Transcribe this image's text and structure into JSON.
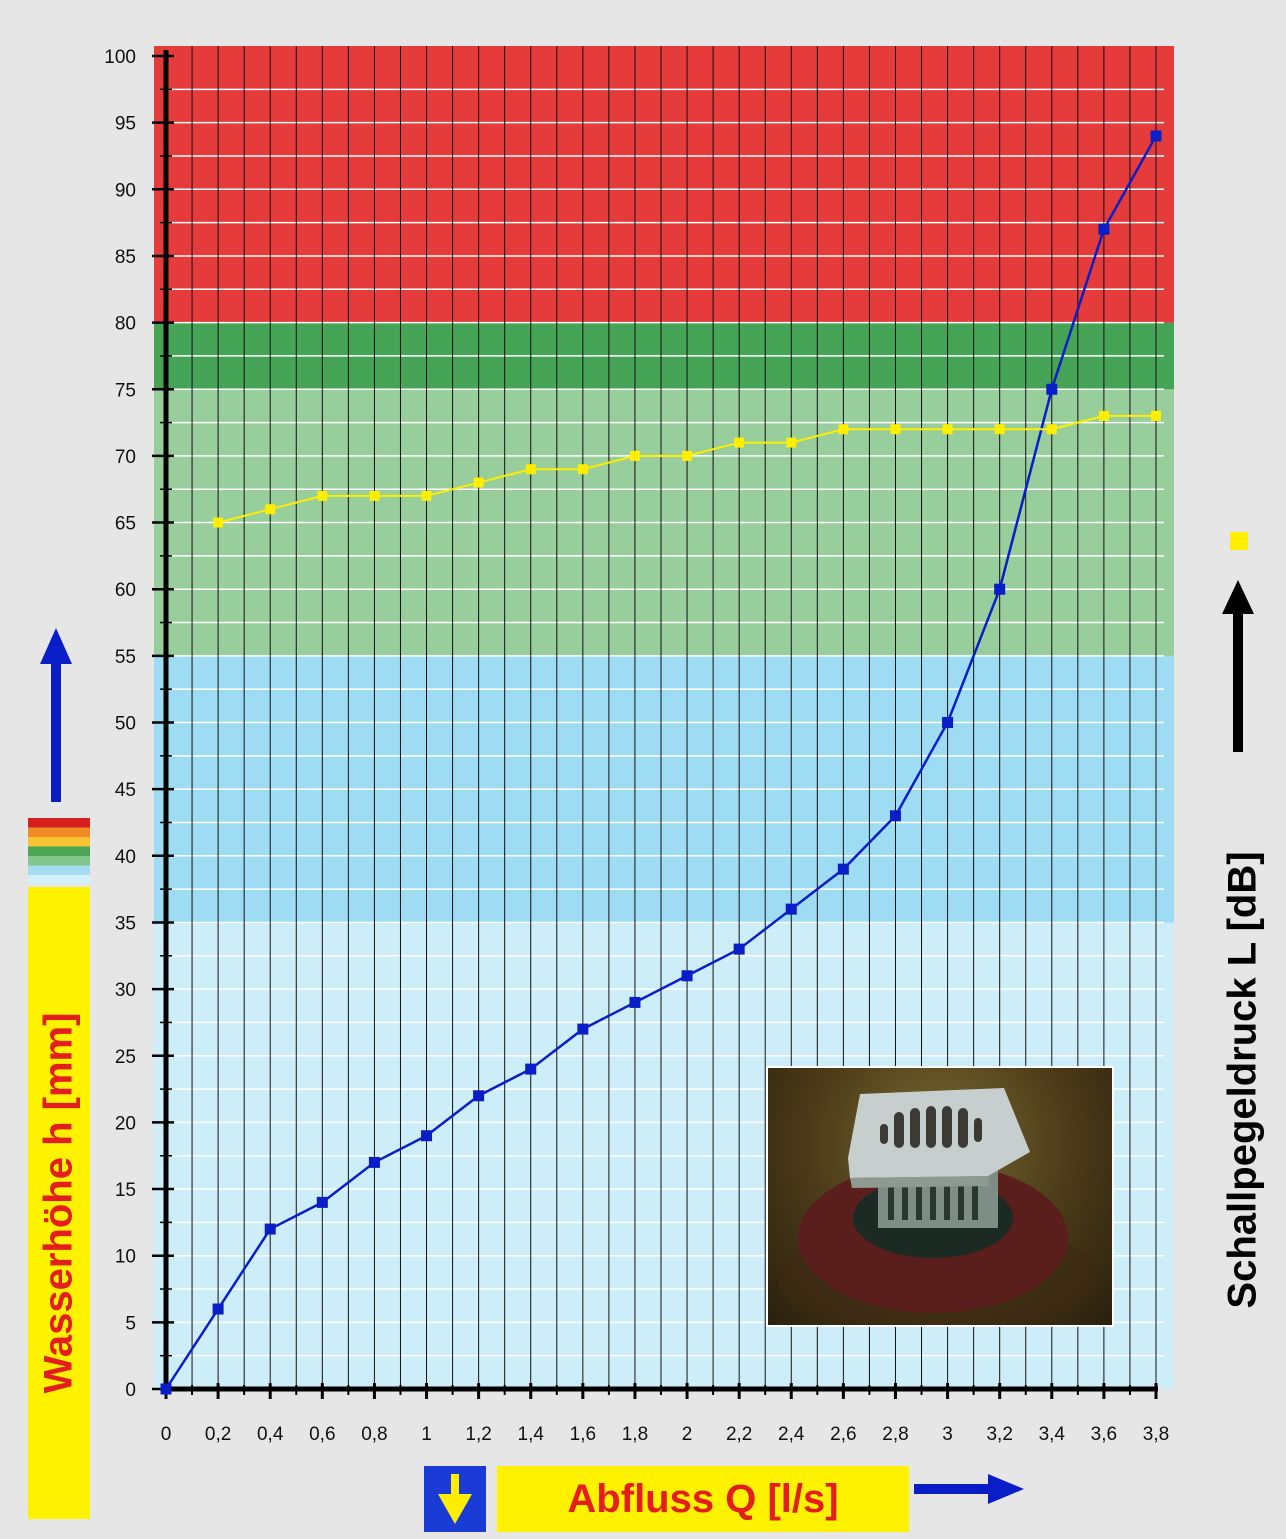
{
  "chart_data": {
    "type": "line",
    "xlabel": "Abfluss Q [l/s]",
    "ylabel": "Wasserhöhe h [mm]",
    "y2label": "Schallpegeldruck L [dB]",
    "xlim": [
      0,
      3.8
    ],
    "ylim": [
      0,
      100
    ],
    "x_tick_labels": [
      "0",
      "0,2",
      "0,4",
      "0,6",
      "0,8",
      "1",
      "1,2",
      "1,4",
      "1,6",
      "1,8",
      "2",
      "2,2",
      "2,4",
      "2,6",
      "2,8",
      "3",
      "3,2",
      "3,4",
      "3,6",
      "3,8"
    ],
    "y_tick_labels": [
      "0",
      "5",
      "10",
      "15",
      "20",
      "25",
      "30",
      "35",
      "40",
      "45",
      "50",
      "55",
      "60",
      "65",
      "70",
      "75",
      "80",
      "85",
      "90",
      "95",
      "100"
    ],
    "grid": true,
    "bands": [
      {
        "from": 0,
        "to": 35,
        "color": "#cdeef9"
      },
      {
        "from": 35,
        "to": 55,
        "color": "#9edcf4"
      },
      {
        "from": 55,
        "to": 75,
        "color": "#98cd9c"
      },
      {
        "from": 75,
        "to": 80,
        "color": "#46a457"
      },
      {
        "from": 80,
        "to": 100,
        "color": "#e53b3b"
      }
    ],
    "series": [
      {
        "color": "#0a1ec8",
        "x": [
          0,
          0.2,
          0.4,
          0.6,
          0.8,
          1,
          1.2,
          1.4,
          1.6,
          1.8,
          2,
          2.2,
          2.4,
          2.6,
          2.8,
          3,
          3.2,
          3.4,
          3.6,
          3.8
        ],
        "y": [
          0,
          6,
          12,
          14,
          17,
          19,
          22,
          24,
          27,
          29,
          31,
          33,
          36,
          39,
          43,
          50,
          60,
          75,
          87,
          94
        ]
      },
      {
        "color": "#ffee00",
        "x": [
          0.2,
          0.4,
          0.6,
          0.8,
          1,
          1.2,
          1.4,
          1.6,
          1.8,
          2,
          2.2,
          2.4,
          2.6,
          2.8,
          3,
          3.2,
          3.4,
          3.6,
          3.8
        ],
        "y": [
          65,
          66,
          67,
          67,
          67,
          68,
          69,
          69,
          70,
          70,
          71,
          71,
          72,
          72,
          72,
          72,
          72,
          73,
          73
        ]
      }
    ],
    "legend_colors": [
      "#d71f1f",
      "#f08a24",
      "#f7c533",
      "#4aa654",
      "#82c68b",
      "#a6dcf2",
      "#d4f0fa"
    ]
  }
}
